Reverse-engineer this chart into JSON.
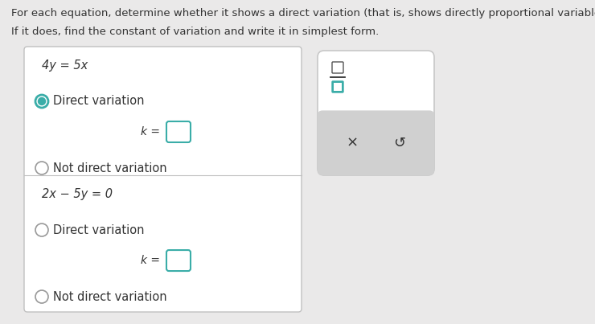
{
  "bg_color": "#eae9e9",
  "white": "#ffffff",
  "light_gray": "#d0d0d0",
  "panel_gray": "#d4d4d4",
  "border_color": "#c0c0c0",
  "text_color": "#333333",
  "teal": "#3aada8",
  "teal_dark": "#2e9490",
  "title_line1": "For each equation, determine whether it shows a direct variation (that is, shows directly proportional variables).",
  "title_line2": "If it does, find the constant of variation and write it in simplest form.",
  "eq1": "4y = 5x",
  "eq2": "2x − 5y = 0",
  "direct_variation": "Direct variation",
  "not_direct_variation": "Not direct variation",
  "k_label": "k =",
  "figw": 7.4,
  "figh": 4.03,
  "dpi": 100
}
